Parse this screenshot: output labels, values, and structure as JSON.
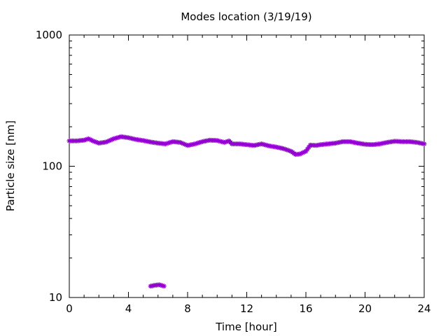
{
  "chart_data": {
    "type": "scatter",
    "title": "Modes location (3/19/19)",
    "xlabel": "Time [hour]",
    "ylabel": "Particle size [nm]",
    "xlim": [
      0,
      24
    ],
    "ylim": [
      10,
      1000
    ],
    "yscale": "log",
    "grid": false,
    "legend": "none",
    "x_ticks": [
      {
        "value": 0,
        "label": "0"
      },
      {
        "value": 4,
        "label": "4"
      },
      {
        "value": 8,
        "label": "8"
      },
      {
        "value": 12,
        "label": "12"
      },
      {
        "value": 16,
        "label": "16"
      },
      {
        "value": 20,
        "label": "20"
      },
      {
        "value": 24,
        "label": "24"
      }
    ],
    "y_ticks": [
      {
        "value": 10,
        "label": "10"
      },
      {
        "value": 100,
        "label": "100"
      },
      {
        "value": 1000,
        "label": "1000"
      }
    ],
    "series": [
      {
        "color": "#9400d3",
        "marker": "star",
        "points": [
          [
            0.0,
            156
          ],
          [
            0.5,
            156
          ],
          [
            1.0,
            158
          ],
          [
            1.3,
            162
          ],
          [
            1.6,
            156
          ],
          [
            2.0,
            150
          ],
          [
            2.5,
            153
          ],
          [
            3.0,
            162
          ],
          [
            3.5,
            168
          ],
          [
            4.0,
            165
          ],
          [
            4.5,
            160
          ],
          [
            5.0,
            157
          ],
          [
            5.5,
            153
          ],
          [
            6.0,
            150
          ],
          [
            6.5,
            148
          ],
          [
            7.0,
            154
          ],
          [
            7.5,
            152
          ],
          [
            8.0,
            144
          ],
          [
            8.5,
            148
          ],
          [
            9.0,
            154
          ],
          [
            9.5,
            158
          ],
          [
            10.0,
            157
          ],
          [
            10.5,
            152
          ],
          [
            10.8,
            156
          ],
          [
            11.0,
            148
          ],
          [
            11.5,
            148
          ],
          [
            12.0,
            146
          ],
          [
            12.5,
            144
          ],
          [
            13.0,
            148
          ],
          [
            13.5,
            143
          ],
          [
            14.0,
            140
          ],
          [
            14.5,
            136
          ],
          [
            15.0,
            130
          ],
          [
            15.3,
            123
          ],
          [
            15.6,
            124
          ],
          [
            16.0,
            130
          ],
          [
            16.3,
            145
          ],
          [
            16.7,
            144
          ],
          [
            17.0,
            146
          ],
          [
            17.5,
            148
          ],
          [
            18.0,
            150
          ],
          [
            18.5,
            154
          ],
          [
            19.0,
            154
          ],
          [
            19.5,
            150
          ],
          [
            20.0,
            147
          ],
          [
            20.5,
            146
          ],
          [
            21.0,
            148
          ],
          [
            21.5,
            152
          ],
          [
            22.0,
            155
          ],
          [
            22.5,
            154
          ],
          [
            23.0,
            154
          ],
          [
            23.5,
            152
          ],
          [
            24.0,
            148
          ],
          [
            5.5,
            12.2
          ],
          [
            5.8,
            12.4
          ],
          [
            6.1,
            12.5
          ],
          [
            6.4,
            12.2
          ]
        ]
      }
    ]
  }
}
